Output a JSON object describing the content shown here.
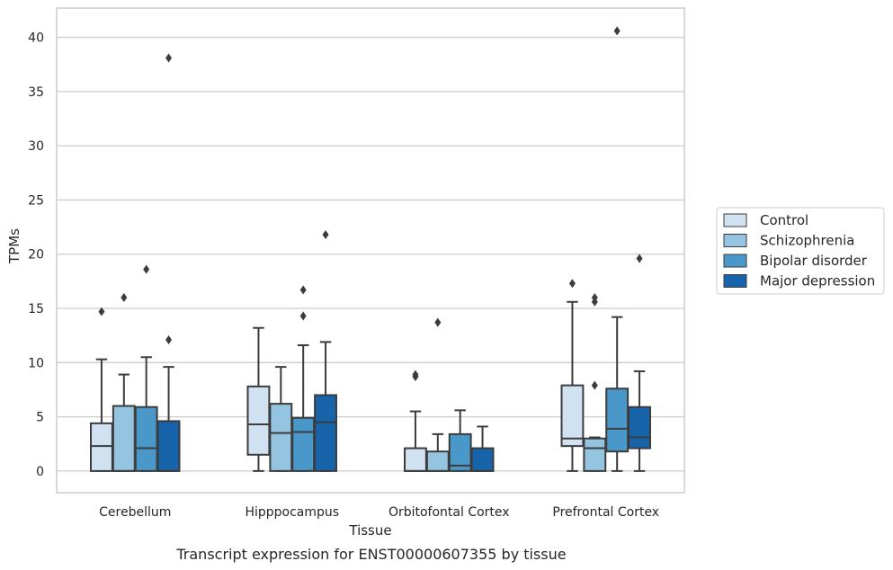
{
  "chart_data": {
    "type": "box",
    "title": "",
    "caption": "Transcript expression for ENST00000607355 by tissue",
    "xlabel": "Tissue",
    "ylabel": "TPMs",
    "ylim": [
      -2,
      42.7
    ],
    "yticks": [
      0,
      5,
      10,
      15,
      20,
      25,
      30,
      35,
      40
    ],
    "grid": "horizontal",
    "legend_position": "right",
    "categories": [
      "Cerebellum",
      "Hipppocampus",
      "Orbitofontal Cortex",
      "Prefrontal Cortex"
    ],
    "series": [
      {
        "name": "Control",
        "color": "#d0e1f2",
        "boxes": [
          {
            "whisker_low": 0,
            "q1": 0,
            "median": 2.3,
            "q3": 4.4,
            "whisker_high": 10.3,
            "outliers": [
              14.7
            ]
          },
          {
            "whisker_low": 0,
            "q1": 1.5,
            "median": 4.3,
            "q3": 7.8,
            "whisker_high": 13.2,
            "outliers": []
          },
          {
            "whisker_low": 0,
            "q1": 0,
            "median": 0,
            "q3": 2.1,
            "whisker_high": 5.5,
            "outliers": [
              8.7,
              8.9
            ]
          },
          {
            "whisker_low": 0,
            "q1": 2.3,
            "median": 3.0,
            "q3": 7.9,
            "whisker_high": 15.6,
            "outliers": [
              17.3
            ]
          }
        ]
      },
      {
        "name": "Schizophrenia",
        "color": "#94c4df",
        "boxes": [
          {
            "whisker_low": 0,
            "q1": 0,
            "median": 0,
            "q3": 6.0,
            "whisker_high": 8.9,
            "outliers": [
              16.0
            ]
          },
          {
            "whisker_low": 0,
            "q1": 0,
            "median": 3.5,
            "q3": 6.2,
            "whisker_high": 9.6,
            "outliers": []
          },
          {
            "whisker_low": 0,
            "q1": 0,
            "median": 0,
            "q3": 1.8,
            "whisker_high": 3.4,
            "outliers": [
              13.7
            ]
          },
          {
            "whisker_low": 0,
            "q1": 0,
            "median": 2.1,
            "q3": 3.0,
            "whisker_high": 3.1,
            "outliers": [
              7.9,
              15.6,
              16.0
            ]
          }
        ]
      },
      {
        "name": "Bipolar disorder",
        "color": "#4a98c9",
        "boxes": [
          {
            "whisker_low": 0,
            "q1": 0,
            "median": 2.1,
            "q3": 5.9,
            "whisker_high": 10.5,
            "outliers": [
              18.6
            ]
          },
          {
            "whisker_low": 0,
            "q1": 0,
            "median": 3.6,
            "q3": 4.9,
            "whisker_high": 11.6,
            "outliers": [
              14.3,
              16.7
            ]
          },
          {
            "whisker_low": 0,
            "q1": 0,
            "median": 0.5,
            "q3": 3.4,
            "whisker_high": 5.6,
            "outliers": []
          },
          {
            "whisker_low": 0,
            "q1": 1.8,
            "median": 3.9,
            "q3": 7.6,
            "whisker_high": 14.2,
            "outliers": [
              40.6
            ]
          }
        ]
      },
      {
        "name": "Major depression",
        "color": "#1764ab",
        "boxes": [
          {
            "whisker_low": 0,
            "q1": 0,
            "median": 0,
            "q3": 4.6,
            "whisker_high": 9.6,
            "outliers": [
              12.1,
              38.1
            ]
          },
          {
            "whisker_low": 0,
            "q1": 0,
            "median": 4.5,
            "q3": 7.0,
            "whisker_high": 11.9,
            "outliers": [
              21.8
            ]
          },
          {
            "whisker_low": 0,
            "q1": 0,
            "median": 0,
            "q3": 2.1,
            "whisker_high": 4.1,
            "outliers": []
          },
          {
            "whisker_low": 0,
            "q1": 2.1,
            "median": 3.1,
            "q3": 5.9,
            "whisker_high": 9.2,
            "outliers": [
              19.6
            ]
          }
        ]
      }
    ]
  }
}
